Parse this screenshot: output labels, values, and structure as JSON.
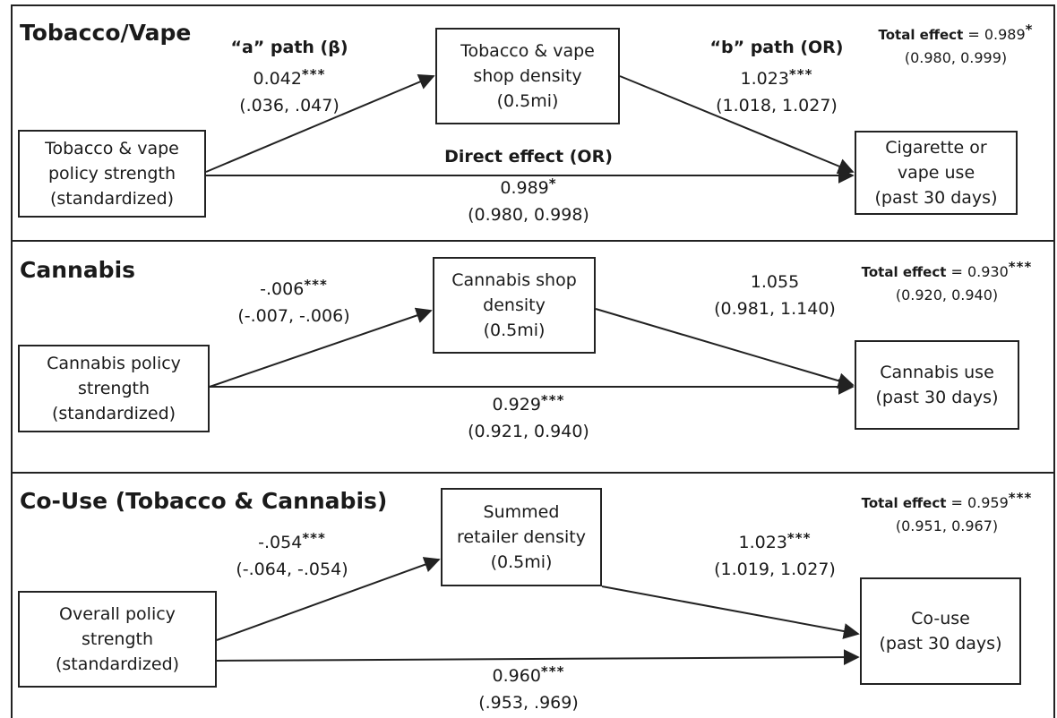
{
  "panels": [
    {
      "title": "Tobacco/Vape",
      "exposure": "Tobacco & vape\npolicy strength\n(standardized)",
      "mediator": "Tobacco & vape\nshop density\n(0.5mi)",
      "outcome": "Cigarette or\nvape use\n(past 30 days)",
      "a_heading": "“a” path (β)",
      "a_value": "0.042",
      "a_sig": "***",
      "a_ci": "(.036, .047)",
      "b_heading": "“b” path (OR)",
      "b_value": "1.023",
      "b_sig": "***",
      "b_ci": "(1.018, 1.027)",
      "direct_heading": "Direct effect (OR)",
      "direct_value": "0.989",
      "direct_sig": "*",
      "direct_ci": "(0.980, 0.998)",
      "total_label": "Total effect",
      "total_value": " = 0.989",
      "total_sig": "*",
      "total_ci": "(0.980, 0.999)"
    },
    {
      "title": "Cannabis",
      "exposure": "Cannabis policy\nstrength\n(standardized)",
      "mediator": "Cannabis shop\ndensity\n(0.5mi)",
      "outcome": "Cannabis use\n(past 30 days)",
      "a_value": "-.006",
      "a_sig": "***",
      "a_ci": "(-.007, -.006)",
      "b_value": "1.055",
      "b_sig": "",
      "b_ci": "(0.981, 1.140)",
      "direct_value": "0.929",
      "direct_sig": "***",
      "direct_ci": "(0.921, 0.940)",
      "total_label": "Total effect",
      "total_value": " = 0.930",
      "total_sig": "***",
      "total_ci": "(0.920, 0.940)"
    },
    {
      "title": "Co-Use (Tobacco & Cannabis)",
      "exposure": "Overall policy\nstrength\n(standardized)",
      "mediator": "Summed\nretailer density\n(0.5mi)",
      "outcome": "Co-use\n(past 30 days)",
      "a_value": "-.054",
      "a_sig": "***",
      "a_ci": "(-.064, -.054)",
      "b_value": "1.023",
      "b_sig": "***",
      "b_ci": "(1.019,  1.027)",
      "direct_value": "0.960",
      "direct_sig": "***",
      "direct_ci": "(.953,  .969)",
      "total_label": "Total effect",
      "total_value": " = 0.959",
      "total_sig": "***",
      "total_ci": "(0.951, 0.967)"
    }
  ]
}
